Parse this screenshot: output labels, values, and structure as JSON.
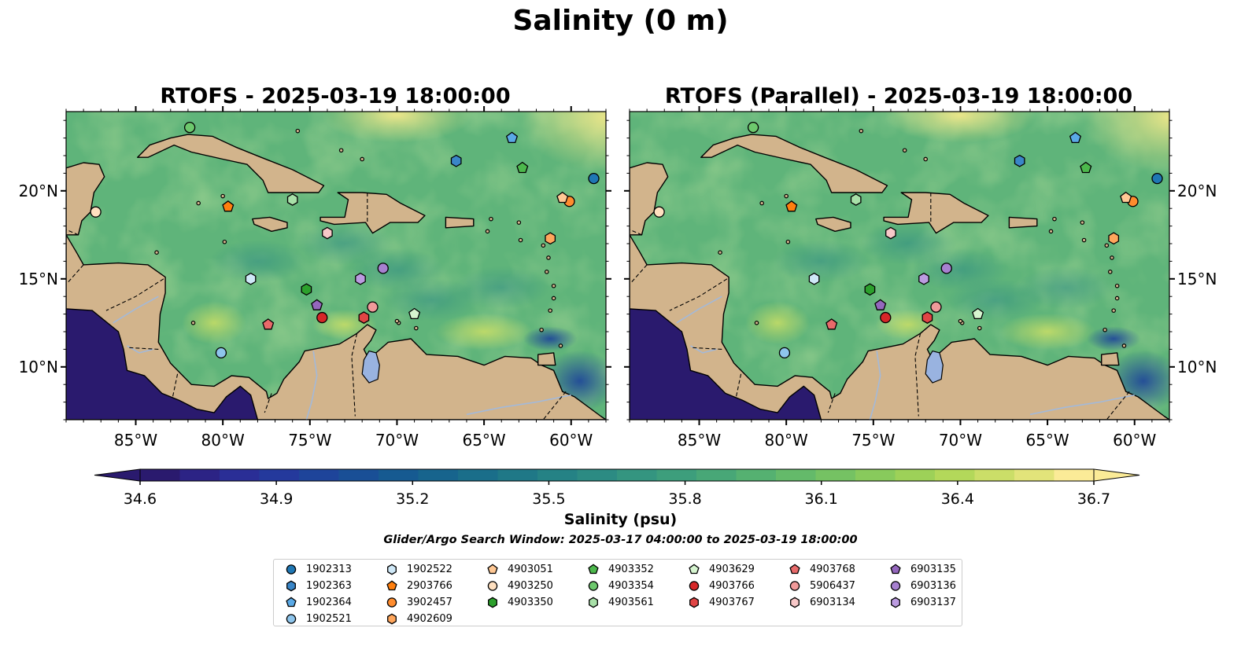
{
  "title": "Salinity (0 m)",
  "panels": [
    {
      "title": "RTOFS - 2025-03-19 18:00:00"
    },
    {
      "title": "RTOFS (Parallel) - 2025-03-19 18:00:00"
    }
  ],
  "map": {
    "lon_range": [
      -89,
      -58
    ],
    "lat_range": [
      7,
      24.5
    ],
    "lon_ticks": [
      "85°W",
      "80°W",
      "75°W",
      "70°W",
      "65°W",
      "60°W"
    ],
    "lat_ticks": [
      "20°N",
      "15°N",
      "10°N"
    ],
    "land_color": "#d2b48c",
    "ocean_color": "#5fb47a",
    "lake_color": "#99b3e0"
  },
  "colorbar": {
    "label": "Salinity (psu)",
    "min": 34.6,
    "max": 36.7,
    "ticks": [
      "34.6",
      "34.9",
      "35.2",
      "35.5",
      "35.8",
      "36.1",
      "36.4",
      "36.7"
    ],
    "colors": [
      "#2a1a6e",
      "#2c2385",
      "#2a2e96",
      "#24399c",
      "#1e449a",
      "#194f96",
      "#165a91",
      "#17648d",
      "#1a6e8a",
      "#1f7887",
      "#258285",
      "#2c8b83",
      "#349580",
      "#3d9e7c",
      "#48a777",
      "#55b171",
      "#64ba6a",
      "#75c263",
      "#88ca5c",
      "#9dd158",
      "#b3d85a",
      "#cbde68",
      "#e2e47a",
      "#fbeb97"
    ]
  },
  "search_window": "Glider/Argo Search Window: 2025-03-17 04:00:00 to 2025-03-19 18:00:00",
  "floats": [
    {
      "id": "1902313",
      "marker": "circle",
      "color": "#1f77b4",
      "lon": -58.7,
      "lat": 20.7
    },
    {
      "id": "1902363",
      "marker": "hexagon",
      "color": "#3a86c8",
      "lon": -66.6,
      "lat": 21.7
    },
    {
      "id": "1902364",
      "marker": "pentagon",
      "color": "#5aa9e6",
      "lon": -63.4,
      "lat": 23.0
    },
    {
      "id": "1902521",
      "marker": "circle",
      "color": "#8ec5ec",
      "lon": -80.1,
      "lat": 10.8
    },
    {
      "id": "1902522",
      "marker": "hexagon",
      "color": "#cfe8f7",
      "lon": -78.4,
      "lat": 15.0
    },
    {
      "id": "2903766",
      "marker": "pentagon",
      "color": "#ff7f0e",
      "lon": -79.7,
      "lat": 19.1
    },
    {
      "id": "3902457",
      "marker": "circle",
      "color": "#ff8c2e",
      "lon": -60.1,
      "lat": 19.4
    },
    {
      "id": "4902609",
      "marker": "hexagon",
      "color": "#ffa65c",
      "lon": -61.2,
      "lat": 17.3
    },
    {
      "id": "4903051",
      "marker": "pentagon",
      "color": "#ffc894",
      "lon": -60.5,
      "lat": 19.6
    },
    {
      "id": "4903250",
      "marker": "circle",
      "color": "#ffe0c0",
      "lon": -87.3,
      "lat": 18.8
    },
    {
      "id": "4903350",
      "marker": "hexagon",
      "color": "#2ca02c",
      "lon": -75.2,
      "lat": 14.4
    },
    {
      "id": "4903352",
      "marker": "pentagon",
      "color": "#4cb84c",
      "lon": -62.8,
      "lat": 21.3
    },
    {
      "id": "4903354",
      "marker": "circle",
      "color": "#6dc86d",
      "lon": -81.9,
      "lat": 23.6
    },
    {
      "id": "4903561",
      "marker": "hexagon",
      "color": "#a8e0a8",
      "lon": -76.0,
      "lat": 19.5
    },
    {
      "id": "4903629",
      "marker": "pentagon",
      "color": "#d6f5d0",
      "lon": -69.0,
      "lat": 13.0
    },
    {
      "id": "4903766",
      "marker": "circle",
      "color": "#d62728",
      "lon": -74.3,
      "lat": 12.8
    },
    {
      "id": "4903767",
      "marker": "hexagon",
      "color": "#e04545",
      "lon": -71.9,
      "lat": 12.8
    },
    {
      "id": "4903768",
      "marker": "pentagon",
      "color": "#e86a6a",
      "lon": -77.4,
      "lat": 12.4
    },
    {
      "id": "5906437",
      "marker": "circle",
      "color": "#f09a9a",
      "lon": -71.4,
      "lat": 13.4
    },
    {
      "id": "6903134",
      "marker": "hexagon",
      "color": "#f8c8c8",
      "lon": -74.0,
      "lat": 17.6
    },
    {
      "id": "6903135",
      "marker": "pentagon",
      "color": "#9467bd",
      "lon": -74.6,
      "lat": 13.5
    },
    {
      "id": "6903136",
      "marker": "circle",
      "color": "#a780d0",
      "lon": -70.8,
      "lat": 15.6
    },
    {
      "id": "6903137",
      "marker": "hexagon",
      "color": "#bb9be0",
      "lon": -72.1,
      "lat": 15.0
    }
  ]
}
